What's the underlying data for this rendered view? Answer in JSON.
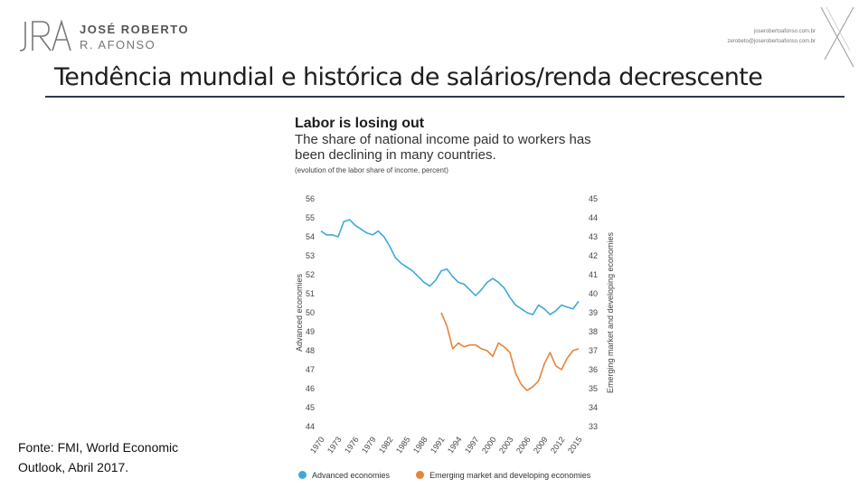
{
  "header": {
    "logo_initials": "JRA",
    "logo_line1": "JOSÉ ROBERTO",
    "logo_line2": "R. AFONSO",
    "contact_line1": "joserobertoafonso.com.br",
    "contact_line2": "zerobeto@joserobertoafonso.com.br"
  },
  "slide": {
    "title": "Tendência mundial e histórica de salários/renda decrescente",
    "source": "Fonte: FMI, World Economic Outlook, Abril 2017."
  },
  "colors": {
    "advanced": "#3fa9d9",
    "emerging": "#e8843a",
    "rule": "#2e3a4e"
  },
  "chart_data": {
    "type": "line",
    "title": "Labor is losing out",
    "subtitle": "The share of national income paid to workers has been declining in many countries.",
    "note": "(evolution of the labor share of income, percent)",
    "ylabel_left": "Advanced economies",
    "ylabel_right": "Emerging market and developing economies",
    "ylim_left": [
      44,
      56
    ],
    "ylim_right": [
      33,
      45
    ],
    "x_range": [
      1970,
      2015
    ],
    "yticks_left": [
      "56",
      "55",
      "54",
      "53",
      "52",
      "51",
      "50",
      "49",
      "48",
      "47",
      "46",
      "45",
      "44"
    ],
    "yticks_right": [
      "45",
      "44",
      "43",
      "42",
      "41",
      "40",
      "39",
      "38",
      "37",
      "36",
      "35",
      "34",
      "33"
    ],
    "xticks": [
      "1970",
      "1973",
      "1976",
      "1979",
      "1982",
      "1985",
      "1988",
      "1991",
      "1994",
      "1997",
      "2000",
      "2003",
      "2006",
      "2009",
      "2012",
      "2015"
    ],
    "series": [
      {
        "name": "Advanced economies",
        "axis": "left",
        "x": [
          1970,
          1971,
          1972,
          1973,
          1974,
          1975,
          1976,
          1977,
          1978,
          1979,
          1980,
          1981,
          1982,
          1983,
          1984,
          1985,
          1986,
          1987,
          1988,
          1989,
          1990,
          1991,
          1992,
          1993,
          1994,
          1995,
          1996,
          1997,
          1998,
          1999,
          2000,
          2001,
          2002,
          2003,
          2004,
          2005,
          2006,
          2007,
          2008,
          2009,
          2010,
          2011,
          2012,
          2013,
          2014,
          2015
        ],
        "values": [
          54.3,
          54.1,
          54.1,
          54.0,
          54.8,
          54.9,
          54.6,
          54.4,
          54.2,
          54.1,
          54.3,
          54.0,
          53.5,
          52.9,
          52.6,
          52.4,
          52.2,
          51.9,
          51.6,
          51.4,
          51.7,
          52.2,
          52.3,
          51.9,
          51.6,
          51.5,
          51.2,
          50.9,
          51.2,
          51.6,
          51.8,
          51.6,
          51.3,
          50.8,
          50.4,
          50.2,
          50.0,
          49.9,
          50.4,
          50.2,
          49.9,
          50.1,
          50.4,
          50.3,
          50.2,
          50.6
        ]
      },
      {
        "name": "Emerging market and developing economies",
        "axis": "right",
        "x": [
          1991,
          1992,
          1993,
          1994,
          1995,
          1996,
          1997,
          1998,
          1999,
          2000,
          2001,
          2002,
          2003,
          2004,
          2005,
          2006,
          2007,
          2008,
          2009,
          2010,
          2011,
          2012,
          2013,
          2014,
          2015
        ],
        "values": [
          39.0,
          38.3,
          37.1,
          37.4,
          37.2,
          37.3,
          37.3,
          37.1,
          37.0,
          36.7,
          37.4,
          37.2,
          36.9,
          35.8,
          35.2,
          34.9,
          35.1,
          35.4,
          36.3,
          36.9,
          36.2,
          36.0,
          36.6,
          37.0,
          37.1
        ]
      }
    ]
  }
}
